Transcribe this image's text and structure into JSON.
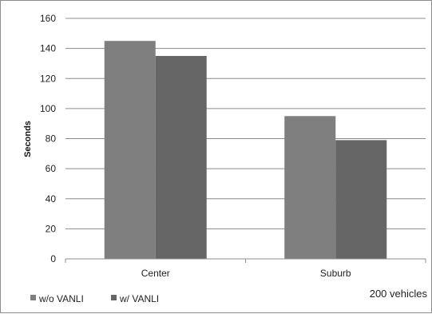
{
  "chart_data": {
    "type": "bar",
    "categories": [
      "Center",
      "Suburb"
    ],
    "series": [
      {
        "name": "w/o VANLI",
        "values": [
          145,
          95
        ],
        "color": "#7f7f7f"
      },
      {
        "name": "w/ VANLI",
        "values": [
          135,
          79
        ],
        "color": "#666666"
      }
    ],
    "title": "",
    "xlabel": "",
    "ylabel": "Seconds",
    "ylim": [
      0,
      160
    ],
    "yticks": [
      0,
      20,
      40,
      60,
      80,
      100,
      120,
      140,
      160
    ],
    "grid": true,
    "legend_position": "bottom-left",
    "annotation": "200 vehicles"
  }
}
